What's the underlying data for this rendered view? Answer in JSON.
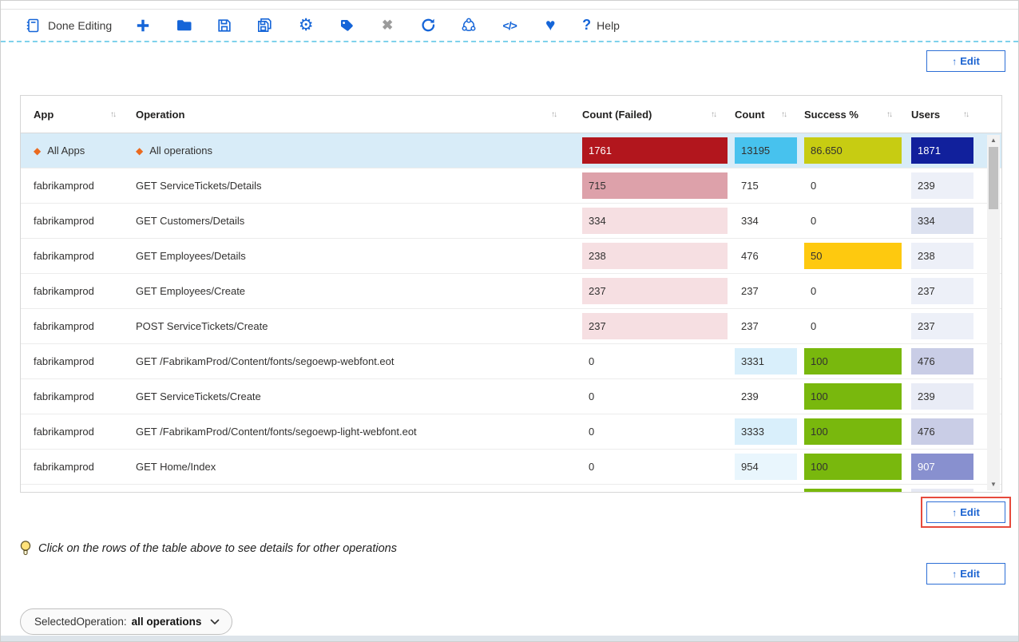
{
  "toolbar": {
    "done_editing_label": "Done Editing",
    "help_label": "Help",
    "help_glyph": "?",
    "close_glyph": "✖",
    "refresh_glyph": "↻",
    "gear_glyph": "⚙",
    "heart_glyph": "♥",
    "code_glyph": "</>"
  },
  "edit_button": {
    "arrow": "↑",
    "label": "Edit"
  },
  "table": {
    "sort_glyph": "↑↓",
    "diamond_glyph": "◆",
    "columns": [
      "App",
      "Operation",
      "Count (Failed)",
      "Count",
      "Success %",
      "Users"
    ],
    "rows": [
      {
        "app": "All Apps",
        "operation": "All operations",
        "selected": true,
        "diamond": true,
        "failed": {
          "v": "1761",
          "bg": "#b2161d",
          "fg": "#ffffff"
        },
        "count": {
          "v": "13195",
          "bg": "#47c2ee"
        },
        "success": {
          "v": "86.650",
          "bg": "#c7cc12"
        },
        "users": {
          "v": "1871",
          "bg": "#11209c",
          "fg": "#ffffff"
        }
      },
      {
        "app": "fabrikamprod",
        "operation": "GET ServiceTickets/Details",
        "failed": {
          "v": "715",
          "bg": "#dda1aa"
        },
        "count": {
          "v": "715"
        },
        "success": {
          "v": "0"
        },
        "users": {
          "v": "239",
          "bg": "#edf0f8"
        }
      },
      {
        "app": "fabrikamprod",
        "operation": "GET Customers/Details",
        "failed": {
          "v": "334",
          "bg": "#f6dfe2"
        },
        "count": {
          "v": "334"
        },
        "success": {
          "v": "0"
        },
        "users": {
          "v": "334",
          "bg": "#dde2f0"
        }
      },
      {
        "app": "fabrikamprod",
        "operation": "GET Employees/Details",
        "failed": {
          "v": "238",
          "bg": "#f6dfe2"
        },
        "count": {
          "v": "476"
        },
        "success": {
          "v": "50",
          "bg": "#fec90f"
        },
        "users": {
          "v": "238",
          "bg": "#edf0f8"
        }
      },
      {
        "app": "fabrikamprod",
        "operation": "GET Employees/Create",
        "failed": {
          "v": "237",
          "bg": "#f6dfe2"
        },
        "count": {
          "v": "237"
        },
        "success": {
          "v": "0"
        },
        "users": {
          "v": "237",
          "bg": "#edf0f8"
        }
      },
      {
        "app": "fabrikamprod",
        "operation": "POST ServiceTickets/Create",
        "failed": {
          "v": "237",
          "bg": "#f6dfe2"
        },
        "count": {
          "v": "237"
        },
        "success": {
          "v": "0"
        },
        "users": {
          "v": "237",
          "bg": "#edf0f8"
        }
      },
      {
        "app": "fabrikamprod",
        "operation": "GET /FabrikamProd/Content/fonts/segoewp-webfont.eot",
        "failed": {
          "v": "0"
        },
        "count": {
          "v": "3331",
          "bg": "#d9effb"
        },
        "success": {
          "v": "100",
          "bg": "#79b80d"
        },
        "users": {
          "v": "476",
          "bg": "#c9cde6"
        }
      },
      {
        "app": "fabrikamprod",
        "operation": "GET ServiceTickets/Create",
        "failed": {
          "v": "0"
        },
        "count": {
          "v": "239"
        },
        "success": {
          "v": "100",
          "bg": "#79b80d"
        },
        "users": {
          "v": "239",
          "bg": "#e9ecf6"
        }
      },
      {
        "app": "fabrikamprod",
        "operation": "GET /FabrikamProd/Content/fonts/segoewp-light-webfont.eot",
        "failed": {
          "v": "0"
        },
        "count": {
          "v": "3333",
          "bg": "#d9effb"
        },
        "success": {
          "v": "100",
          "bg": "#79b80d"
        },
        "users": {
          "v": "476",
          "bg": "#c9cde6"
        }
      },
      {
        "app": "fabrikamprod",
        "operation": "GET Home/Index",
        "failed": {
          "v": "0"
        },
        "count": {
          "v": "954",
          "bg": "#e9f6fd"
        },
        "success": {
          "v": "100",
          "bg": "#79b80d"
        },
        "users": {
          "v": "907",
          "bg": "#8890cf",
          "fg": "#ffffff"
        }
      }
    ],
    "partial_row": {
      "success_bg": "#79b80d",
      "users_bg": "#e6e9f4"
    },
    "scrollbar": {
      "up": "▲",
      "down": "▼"
    }
  },
  "tip": {
    "text": "Click on the rows of the table above to see details for other operations"
  },
  "selected_operation_pill": {
    "label": "SelectedOperation:",
    "value": "all operations"
  },
  "colors": {
    "accent_blue": "#1565d8",
    "edit_blue": "#1b63d1",
    "highlight_red": "#e64a3c",
    "selected_row": "#d8ecf8",
    "diamond_orange": "#ea6a1f",
    "dashed_divider": "#7fd2eb",
    "heat_dark_red": "#b2161d",
    "heat_pink": "#dda1aa",
    "heat_light_pink": "#f6dfe2",
    "heat_cyan": "#47c2ee",
    "heat_light_cyan": "#d9effb",
    "heat_citron": "#c7cc12",
    "heat_gold": "#fec90f",
    "heat_green": "#79b80d",
    "heat_navy": "#11209c",
    "heat_purple": "#8890cf",
    "heat_lavender": "#c9cde6"
  }
}
